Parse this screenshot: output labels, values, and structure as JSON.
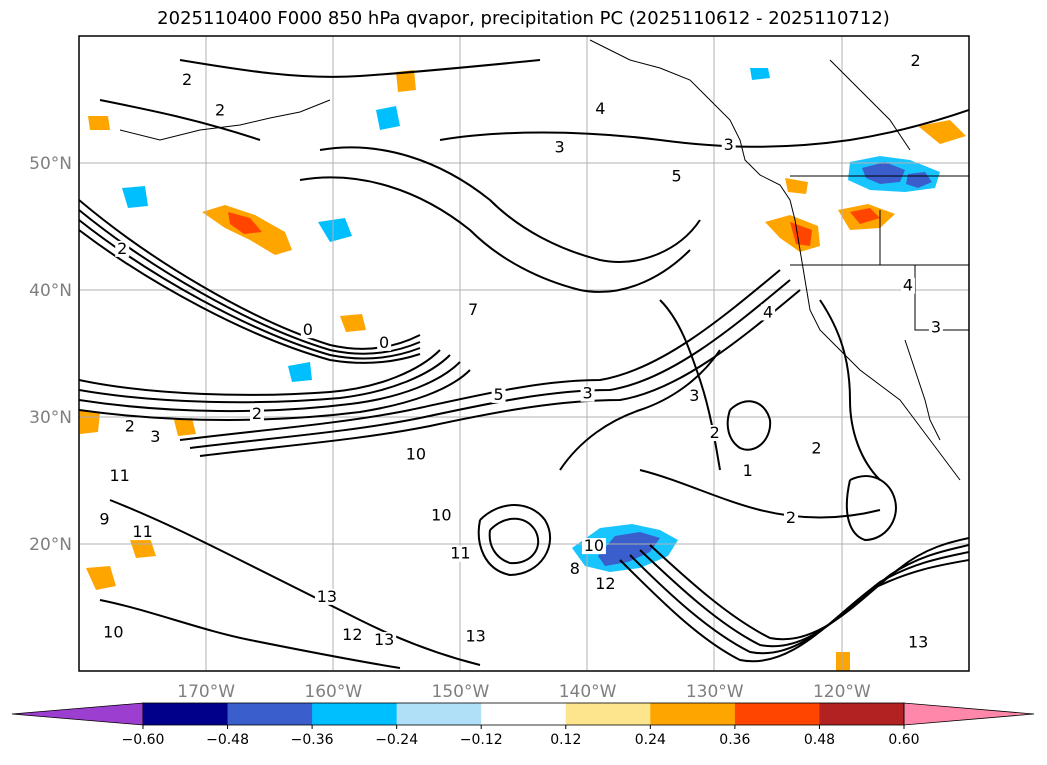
{
  "title": "2025110400 F000 850 hPa qvapor, precipitation PC (2025110612 - 2025110712)",
  "map": {
    "lon_range": [
      -180,
      -110
    ],
    "lat_range": [
      10,
      60
    ],
    "lon_ticks": [
      {
        "value": -170,
        "label": "170°W"
      },
      {
        "value": -160,
        "label": "160°W"
      },
      {
        "value": -150,
        "label": "150°W"
      },
      {
        "value": -140,
        "label": "140°W"
      },
      {
        "value": -130,
        "label": "130°W"
      },
      {
        "value": -120,
        "label": "120°W"
      }
    ],
    "lat_ticks": [
      {
        "value": 20,
        "label": "20°N"
      },
      {
        "value": 30,
        "label": "30°N"
      },
      {
        "value": 40,
        "label": "40°N"
      },
      {
        "value": 50,
        "label": "50°N"
      }
    ],
    "grid": true
  },
  "contour_labels": [
    {
      "text": "2",
      "lon": -171.5,
      "lat": 56.3
    },
    {
      "text": "2",
      "lon": -168.9,
      "lat": 53.9
    },
    {
      "text": "4",
      "lon": -139.0,
      "lat": 54.0
    },
    {
      "text": "3",
      "lon": -142.2,
      "lat": 51.0
    },
    {
      "text": "5",
      "lon": -133.0,
      "lat": 48.7
    },
    {
      "text": "3",
      "lon": -128.9,
      "lat": 51.2
    },
    {
      "text": "2",
      "lon": -114.2,
      "lat": 57.8
    },
    {
      "text": "2",
      "lon": -176.6,
      "lat": 43.0
    },
    {
      "text": "7",
      "lon": -149.0,
      "lat": 38.2
    },
    {
      "text": "0",
      "lon": -156.0,
      "lat": 35.6
    },
    {
      "text": "0",
      "lon": -162.0,
      "lat": 36.6
    },
    {
      "text": "5",
      "lon": -147.0,
      "lat": 31.5
    },
    {
      "text": "3",
      "lon": -140.0,
      "lat": 31.6
    },
    {
      "text": "3",
      "lon": -131.6,
      "lat": 31.4
    },
    {
      "text": "2",
      "lon": -130.0,
      "lat": 28.5
    },
    {
      "text": "1",
      "lon": -127.4,
      "lat": 25.5
    },
    {
      "text": "2",
      "lon": -122.0,
      "lat": 27.3
    },
    {
      "text": "2",
      "lon": -124.0,
      "lat": 21.8
    },
    {
      "text": "4",
      "lon": -125.8,
      "lat": 38.0
    },
    {
      "text": "4",
      "lon": -114.8,
      "lat": 40.1
    },
    {
      "text": "3",
      "lon": -112.6,
      "lat": 36.8
    },
    {
      "text": "2",
      "lon": -176.0,
      "lat": 29.0
    },
    {
      "text": "3",
      "lon": -174.0,
      "lat": 28.2
    },
    {
      "text": "2",
      "lon": -166.0,
      "lat": 30.0
    },
    {
      "text": "11",
      "lon": -176.8,
      "lat": 25.1
    },
    {
      "text": "11",
      "lon": -175.0,
      "lat": 20.7
    },
    {
      "text": "10",
      "lon": -153.5,
      "lat": 26.8
    },
    {
      "text": "10",
      "lon": -151.5,
      "lat": 22.0
    },
    {
      "text": "11",
      "lon": -150.0,
      "lat": 19.0
    },
    {
      "text": "13",
      "lon": -160.5,
      "lat": 15.6
    },
    {
      "text": "12",
      "lon": -158.5,
      "lat": 12.6
    },
    {
      "text": "13",
      "lon": -156.0,
      "lat": 12.2
    },
    {
      "text": "13",
      "lon": -148.8,
      "lat": 12.5
    },
    {
      "text": "10",
      "lon": -139.5,
      "lat": 19.6
    },
    {
      "text": "8",
      "lon": -141.0,
      "lat": 17.8
    },
    {
      "text": "12",
      "lon": -138.6,
      "lat": 16.6
    },
    {
      "text": "13",
      "lon": -114.0,
      "lat": 12.0
    },
    {
      "text": "9",
      "lon": -178.0,
      "lat": 21.7
    },
    {
      "text": "10",
      "lon": -177.3,
      "lat": 12.8
    }
  ],
  "colorbar": {
    "extend": "both",
    "levels": [
      -0.6,
      -0.48,
      -0.36,
      -0.24,
      -0.12,
      0.12,
      0.24,
      0.36,
      0.48,
      0.6
    ],
    "tick_labels": [
      "−0.60",
      "−0.48",
      "−0.36",
      "−0.24",
      "−0.12",
      "0.12",
      "0.24",
      "0.36",
      "0.48",
      "0.60"
    ],
    "colors": [
      "#9c3fd0",
      "#00008b",
      "#3a5fcd",
      "#00bfff",
      "#b0e0f7",
      "#ffffff",
      "#fde58d",
      "#ffa500",
      "#ff4500",
      "#b22222",
      "#ff88aa"
    ]
  },
  "colors": {
    "contour": "#000000",
    "grid": "#b0b0b0",
    "tick_text": "#7f7f7f"
  }
}
